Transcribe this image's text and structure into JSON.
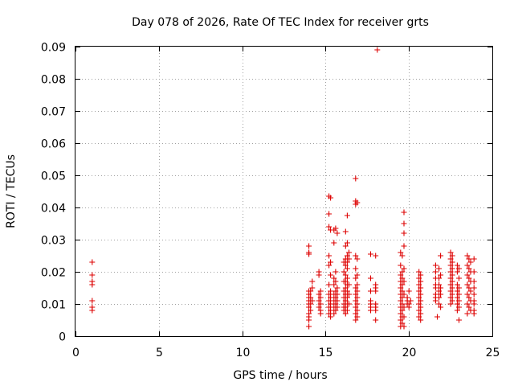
{
  "chart_data": {
    "type": "scatter",
    "title": "Day 078 of 2026, Rate Of TEC Index for receiver grts",
    "xlabel": "GPS time / hours",
    "ylabel": "ROTI / TECUs",
    "xlim": [
      0,
      25
    ],
    "ylim": [
      0,
      0.09
    ],
    "x_ticks": [
      0,
      5,
      10,
      15,
      20,
      25
    ],
    "x_tick_labels": [
      "0",
      "5",
      "10",
      "15",
      "20",
      "25"
    ],
    "y_ticks": [
      0,
      0.01,
      0.02,
      0.03,
      0.04,
      0.05,
      0.06,
      0.07,
      0.08,
      0.09
    ],
    "y_tick_labels": [
      "0",
      "0.01",
      "0.02",
      "0.03",
      "0.04",
      "0.05",
      "0.06",
      "0.07",
      "0.08",
      "0.09"
    ],
    "grid": true,
    "marker": "+",
    "color": "#dd0000",
    "series": [
      {
        "name": "ROTI",
        "points": [
          [
            1.0,
            0.023
          ],
          [
            1.0,
            0.019
          ],
          [
            1.0,
            0.017
          ],
          [
            1.0,
            0.016
          ],
          [
            1.0,
            0.011
          ],
          [
            1.0,
            0.009
          ],
          [
            1.0,
            0.008
          ],
          [
            14.0,
            0.028
          ],
          [
            14.0,
            0.026
          ],
          [
            14.0,
            0.0255
          ],
          [
            14.0,
            0.014
          ],
          [
            14.0,
            0.013
          ],
          [
            14.0,
            0.012
          ],
          [
            14.0,
            0.011
          ],
          [
            14.0,
            0.01
          ],
          [
            14.0,
            0.009
          ],
          [
            14.0,
            0.007
          ],
          [
            14.0,
            0.006
          ],
          [
            14.0,
            0.005
          ],
          [
            14.0,
            0.003
          ],
          [
            14.1,
            0.014
          ],
          [
            14.1,
            0.012
          ],
          [
            14.1,
            0.01
          ],
          [
            14.1,
            0.008
          ],
          [
            14.2,
            0.017
          ],
          [
            14.2,
            0.015
          ],
          [
            14.2,
            0.011
          ],
          [
            14.6,
            0.02
          ],
          [
            14.6,
            0.019
          ],
          [
            14.6,
            0.013
          ],
          [
            14.6,
            0.011
          ],
          [
            14.6,
            0.009
          ],
          [
            14.7,
            0.014
          ],
          [
            14.7,
            0.012
          ],
          [
            14.7,
            0.01
          ],
          [
            14.7,
            0.008
          ],
          [
            14.7,
            0.007
          ],
          [
            15.2,
            0.0435
          ],
          [
            15.3,
            0.043
          ],
          [
            15.2,
            0.038
          ],
          [
            15.2,
            0.034
          ],
          [
            15.3,
            0.033
          ],
          [
            15.2,
            0.025
          ],
          [
            15.3,
            0.023
          ],
          [
            15.2,
            0.022
          ],
          [
            15.3,
            0.019
          ],
          [
            15.2,
            0.016
          ],
          [
            15.3,
            0.014
          ],
          [
            15.2,
            0.013
          ],
          [
            15.3,
            0.012
          ],
          [
            15.2,
            0.011
          ],
          [
            15.3,
            0.01
          ],
          [
            15.2,
            0.009
          ],
          [
            15.3,
            0.008
          ],
          [
            15.2,
            0.007
          ],
          [
            15.3,
            0.006
          ],
          [
            15.5,
            0.033
          ],
          [
            15.6,
            0.0335
          ],
          [
            15.5,
            0.029
          ],
          [
            15.6,
            0.02
          ],
          [
            15.5,
            0.018
          ],
          [
            15.6,
            0.017
          ],
          [
            15.5,
            0.016
          ],
          [
            15.6,
            0.014
          ],
          [
            15.5,
            0.013
          ],
          [
            15.6,
            0.012
          ],
          [
            15.5,
            0.011
          ],
          [
            15.6,
            0.01
          ],
          [
            15.5,
            0.009
          ],
          [
            15.6,
            0.008
          ],
          [
            15.5,
            0.007
          ],
          [
            15.7,
            0.032
          ],
          [
            15.7,
            0.015
          ],
          [
            15.7,
            0.013
          ],
          [
            15.7,
            0.011
          ],
          [
            15.7,
            0.009
          ],
          [
            16.1,
            0.023
          ],
          [
            16.1,
            0.02
          ],
          [
            16.1,
            0.017
          ],
          [
            16.1,
            0.014
          ],
          [
            16.1,
            0.012
          ],
          [
            16.1,
            0.01
          ],
          [
            16.1,
            0.009
          ],
          [
            16.1,
            0.008
          ],
          [
            16.3,
            0.0375
          ],
          [
            16.2,
            0.0325
          ],
          [
            16.3,
            0.029
          ],
          [
            16.2,
            0.028
          ],
          [
            16.3,
            0.025
          ],
          [
            16.2,
            0.024
          ],
          [
            16.3,
            0.023
          ],
          [
            16.2,
            0.022
          ],
          [
            16.3,
            0.021
          ],
          [
            16.2,
            0.019
          ],
          [
            16.3,
            0.018
          ],
          [
            16.2,
            0.017
          ],
          [
            16.3,
            0.016
          ],
          [
            16.2,
            0.015
          ],
          [
            16.3,
            0.014
          ],
          [
            16.2,
            0.013
          ],
          [
            16.3,
            0.012
          ],
          [
            16.2,
            0.011
          ],
          [
            16.3,
            0.01
          ],
          [
            16.2,
            0.009
          ],
          [
            16.3,
            0.008
          ],
          [
            16.2,
            0.007
          ],
          [
            16.4,
            0.026
          ],
          [
            16.4,
            0.024
          ],
          [
            16.4,
            0.016
          ],
          [
            16.4,
            0.013
          ],
          [
            16.4,
            0.01
          ],
          [
            16.8,
            0.049
          ],
          [
            16.8,
            0.042
          ],
          [
            16.9,
            0.0415
          ],
          [
            16.8,
            0.041
          ],
          [
            16.8,
            0.025
          ],
          [
            16.9,
            0.024
          ],
          [
            16.8,
            0.021
          ],
          [
            16.9,
            0.019
          ],
          [
            16.8,
            0.018
          ],
          [
            16.9,
            0.016
          ],
          [
            16.8,
            0.015
          ],
          [
            16.9,
            0.014
          ],
          [
            16.8,
            0.013
          ],
          [
            16.9,
            0.012
          ],
          [
            16.8,
            0.011
          ],
          [
            16.9,
            0.01
          ],
          [
            16.8,
            0.009
          ],
          [
            16.9,
            0.008
          ],
          [
            16.8,
            0.007
          ],
          [
            16.9,
            0.006
          ],
          [
            16.8,
            0.005
          ],
          [
            17.7,
            0.0255
          ],
          [
            17.7,
            0.018
          ],
          [
            17.7,
            0.014
          ],
          [
            17.7,
            0.011
          ],
          [
            17.7,
            0.01
          ],
          [
            17.7,
            0.009
          ],
          [
            17.7,
            0.008
          ],
          [
            18.0,
            0.025
          ],
          [
            18.0,
            0.016
          ],
          [
            18.0,
            0.015
          ],
          [
            18.0,
            0.014
          ],
          [
            18.0,
            0.01
          ],
          [
            18.0,
            0.009
          ],
          [
            18.0,
            0.008
          ],
          [
            18.0,
            0.005
          ],
          [
            18.1,
            0.089
          ],
          [
            19.5,
            0.026
          ],
          [
            19.6,
            0.025
          ],
          [
            19.5,
            0.022
          ],
          [
            19.6,
            0.02
          ],
          [
            19.5,
            0.019
          ],
          [
            19.6,
            0.018
          ],
          [
            19.5,
            0.017
          ],
          [
            19.6,
            0.016
          ],
          [
            19.5,
            0.015
          ],
          [
            19.6,
            0.014
          ],
          [
            19.5,
            0.013
          ],
          [
            19.6,
            0.012
          ],
          [
            19.5,
            0.011
          ],
          [
            19.6,
            0.01
          ],
          [
            19.5,
            0.009
          ],
          [
            19.6,
            0.008
          ],
          [
            19.5,
            0.007
          ],
          [
            19.6,
            0.006
          ],
          [
            19.5,
            0.005
          ],
          [
            19.6,
            0.004
          ],
          [
            19.5,
            0.003
          ],
          [
            19.7,
            0.0385
          ],
          [
            19.7,
            0.035
          ],
          [
            19.7,
            0.032
          ],
          [
            19.7,
            0.028
          ],
          [
            19.7,
            0.021
          ],
          [
            19.7,
            0.017
          ],
          [
            19.7,
            0.013
          ],
          [
            19.7,
            0.009
          ],
          [
            19.7,
            0.006
          ],
          [
            19.7,
            0.003
          ],
          [
            19.9,
            0.012
          ],
          [
            19.9,
            0.011
          ],
          [
            19.9,
            0.01
          ],
          [
            20.0,
            0.014
          ],
          [
            20.0,
            0.01
          ],
          [
            20.0,
            0.009
          ],
          [
            20.1,
            0.011
          ],
          [
            20.6,
            0.02
          ],
          [
            20.7,
            0.019
          ],
          [
            20.6,
            0.018
          ],
          [
            20.7,
            0.017
          ],
          [
            20.6,
            0.016
          ],
          [
            20.7,
            0.015
          ],
          [
            20.6,
            0.014
          ],
          [
            20.7,
            0.013
          ],
          [
            20.6,
            0.012
          ],
          [
            20.7,
            0.011
          ],
          [
            20.6,
            0.01
          ],
          [
            20.7,
            0.009
          ],
          [
            20.6,
            0.008
          ],
          [
            20.7,
            0.007
          ],
          [
            20.6,
            0.006
          ],
          [
            20.7,
            0.005
          ],
          [
            21.6,
            0.022
          ],
          [
            21.6,
            0.02
          ],
          [
            21.6,
            0.018
          ],
          [
            21.6,
            0.016
          ],
          [
            21.6,
            0.015
          ],
          [
            21.6,
            0.013
          ],
          [
            21.6,
            0.012
          ],
          [
            21.6,
            0.011
          ],
          [
            21.8,
            0.021
          ],
          [
            21.8,
            0.018
          ],
          [
            21.8,
            0.016
          ],
          [
            21.8,
            0.014
          ],
          [
            21.8,
            0.012
          ],
          [
            21.8,
            0.01
          ],
          [
            21.7,
            0.006
          ],
          [
            21.9,
            0.025
          ],
          [
            21.9,
            0.019
          ],
          [
            21.9,
            0.015
          ],
          [
            21.9,
            0.013
          ],
          [
            21.9,
            0.009
          ],
          [
            22.5,
            0.026
          ],
          [
            22.6,
            0.025
          ],
          [
            22.5,
            0.024
          ],
          [
            22.6,
            0.023
          ],
          [
            22.5,
            0.022
          ],
          [
            22.6,
            0.021
          ],
          [
            22.5,
            0.02
          ],
          [
            22.6,
            0.019
          ],
          [
            22.5,
            0.018
          ],
          [
            22.6,
            0.017
          ],
          [
            22.5,
            0.016
          ],
          [
            22.6,
            0.015
          ],
          [
            22.5,
            0.014
          ],
          [
            22.6,
            0.013
          ],
          [
            22.5,
            0.012
          ],
          [
            22.6,
            0.011
          ],
          [
            22.5,
            0.01
          ],
          [
            22.9,
            0.022
          ],
          [
            23.0,
            0.021
          ],
          [
            22.9,
            0.02
          ],
          [
            23.0,
            0.018
          ],
          [
            22.9,
            0.016
          ],
          [
            23.0,
            0.015
          ],
          [
            22.9,
            0.014
          ],
          [
            23.0,
            0.013
          ],
          [
            22.9,
            0.012
          ],
          [
            23.0,
            0.011
          ],
          [
            22.9,
            0.01
          ],
          [
            23.0,
            0.009
          ],
          [
            22.9,
            0.008
          ],
          [
            23.0,
            0.005
          ],
          [
            23.5,
            0.025
          ],
          [
            23.6,
            0.024
          ],
          [
            23.7,
            0.023
          ],
          [
            23.5,
            0.022
          ],
          [
            23.6,
            0.021
          ],
          [
            23.7,
            0.02
          ],
          [
            23.5,
            0.019
          ],
          [
            23.6,
            0.018
          ],
          [
            23.7,
            0.017
          ],
          [
            23.5,
            0.016
          ],
          [
            23.6,
            0.015
          ],
          [
            23.7,
            0.014
          ],
          [
            23.5,
            0.013
          ],
          [
            23.6,
            0.012
          ],
          [
            23.7,
            0.011
          ],
          [
            23.5,
            0.01
          ],
          [
            23.6,
            0.009
          ],
          [
            23.7,
            0.008
          ],
          [
            23.5,
            0.007
          ],
          [
            23.9,
            0.024
          ],
          [
            23.9,
            0.02
          ],
          [
            23.9,
            0.017
          ],
          [
            23.9,
            0.015
          ],
          [
            23.9,
            0.013
          ],
          [
            23.9,
            0.011
          ],
          [
            23.9,
            0.01
          ],
          [
            23.9,
            0.008
          ],
          [
            23.9,
            0.007
          ]
        ]
      }
    ]
  }
}
